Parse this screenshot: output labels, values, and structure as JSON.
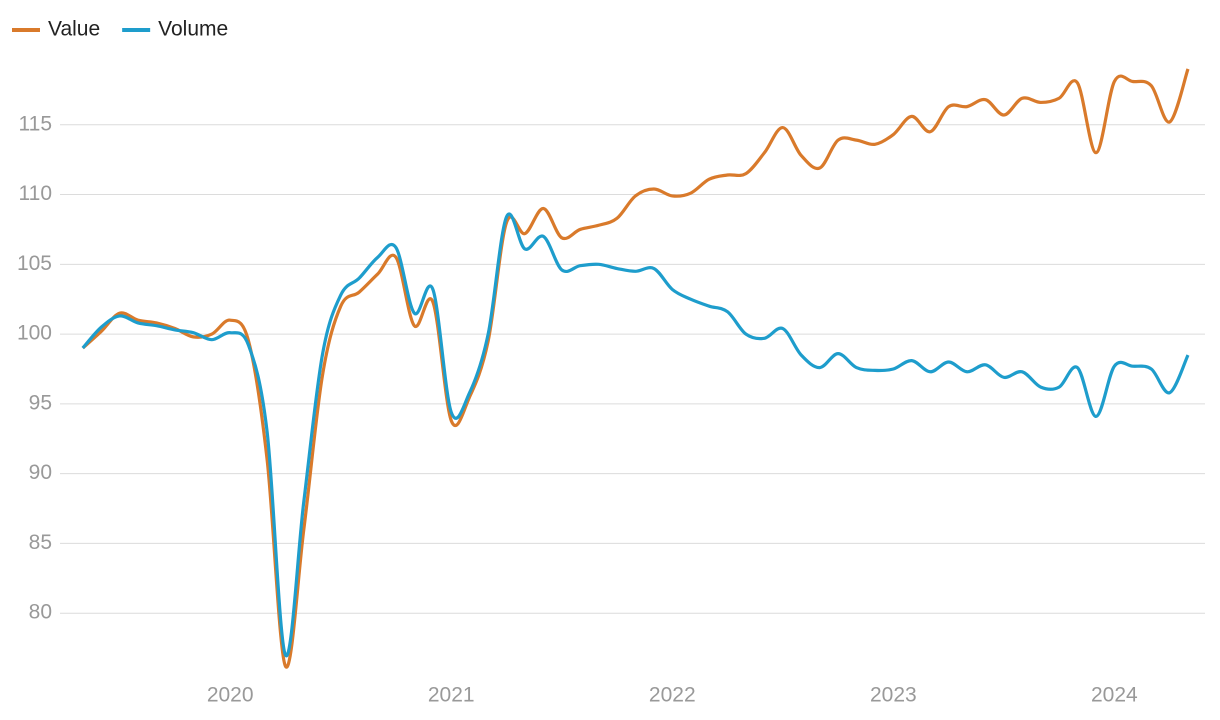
{
  "chart_data": {
    "type": "line",
    "x": [
      2019.333,
      2019.417,
      2019.5,
      2019.583,
      2019.667,
      2019.75,
      2019.833,
      2019.917,
      2020,
      2020.083,
      2020.167,
      2020.25,
      2020.333,
      2020.417,
      2020.5,
      2020.583,
      2020.667,
      2020.75,
      2020.833,
      2020.917,
      2021,
      2021.083,
      2021.167,
      2021.25,
      2021.333,
      2021.417,
      2021.5,
      2021.583,
      2021.667,
      2021.75,
      2021.833,
      2021.917,
      2022,
      2022.083,
      2022.167,
      2022.25,
      2022.333,
      2022.417,
      2022.5,
      2022.583,
      2022.667,
      2022.75,
      2022.833,
      2022.917,
      2023,
      2023.083,
      2023.167,
      2023.25,
      2023.333,
      2023.417,
      2023.5,
      2023.583,
      2023.667,
      2023.75,
      2023.833,
      2023.917,
      2024,
      2024.083,
      2024.167,
      2024.25,
      2024.333
    ],
    "series": [
      {
        "name": "Value",
        "color": "#d97a2b",
        "values": [
          99.0,
          100.2,
          101.5,
          101.0,
          100.8,
          100.4,
          99.8,
          100.0,
          101.0,
          99.5,
          91,
          76.2,
          86,
          97,
          102.0,
          103.0,
          104.3,
          105.5,
          100.6,
          102.3,
          93.8,
          95.5,
          99.5,
          108.0,
          107.2,
          109.0,
          106.9,
          107.5,
          107.8,
          108.3,
          109.9,
          110.4,
          109.9,
          110.1,
          111.1,
          111.4,
          111.5,
          113.0,
          114.8,
          112.8,
          111.9,
          113.9,
          113.9,
          113.6,
          114.3,
          115.6,
          114.5,
          116.3,
          116.3,
          116.8,
          115.7,
          116.9,
          116.6,
          116.9,
          118.0,
          113.0,
          118.1,
          118.1,
          117.8,
          115.2,
          119.0
        ]
      },
      {
        "name": "Volume",
        "color": "#1e9dcc",
        "values": [
          99.0,
          100.5,
          101.3,
          100.8,
          100.6,
          100.3,
          100.1,
          99.6,
          100.1,
          99.2,
          93,
          77,
          88,
          98.5,
          102.8,
          104.0,
          105.5,
          106.2,
          101.5,
          103.2,
          94.4,
          95.8,
          100.0,
          108.4,
          106.1,
          107.0,
          104.6,
          104.9,
          105.0,
          104.7,
          104.5,
          104.7,
          103.2,
          102.5,
          102.0,
          101.6,
          100.0,
          99.7,
          100.4,
          98.5,
          97.6,
          98.6,
          97.6,
          97.4,
          97.5,
          98.1,
          97.3,
          98.0,
          97.3,
          97.8,
          96.9,
          97.3,
          96.2,
          96.2,
          97.6,
          94.1,
          97.7,
          97.7,
          97.5,
          95.8,
          98.5
        ]
      }
    ],
    "xlim": [
      2019.23,
      2024.41
    ],
    "xticks": [
      2020,
      2021,
      2022,
      2023,
      2024
    ],
    "ylim": [
      75.5,
      120
    ],
    "yticks": [
      80,
      85,
      90,
      95,
      100,
      105,
      110,
      115
    ],
    "grid": true,
    "legend": "top-left"
  }
}
